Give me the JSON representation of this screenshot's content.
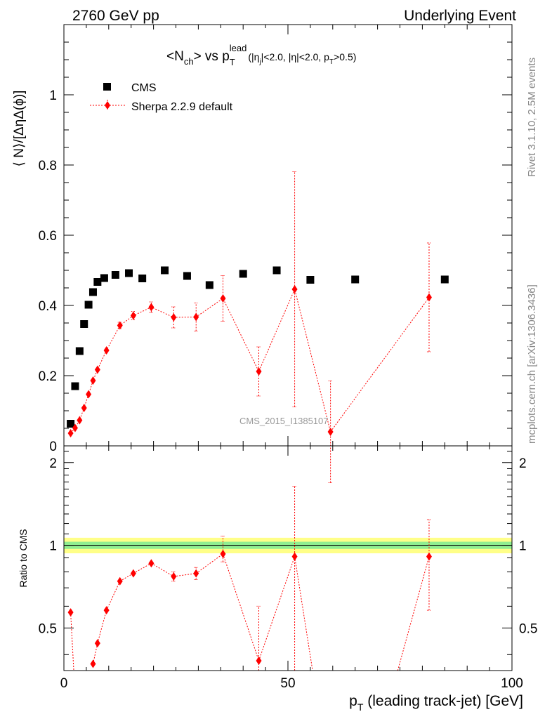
{
  "header": {
    "left": "2760 GeV pp",
    "right": "Underlying Event"
  },
  "side_labels": {
    "top": "Rivet 3.1.10,  2.5M events",
    "bottom": "mcplots.cern.ch [arXiv:1306.3436]"
  },
  "watermark": "CMS_2015_I1385107",
  "title": {
    "n_part": "<N",
    "n_sub": "ch",
    "vs_part": "> vs p",
    "p_sub": "T",
    "p_sup": "lead",
    "cuts_a": "(|η",
    "cuts_a_sub": "j",
    "cuts_b": "|<2.0, |η|<2.0, p",
    "cuts_b_sub": "T",
    "cuts_c": ">0.5)"
  },
  "legend": {
    "cms": "CMS",
    "sherpa": "Sherpa 2.2.9 default"
  },
  "colors": {
    "cms": "#000000",
    "sherpa": "#ff0000",
    "band_inner": "#90ee90",
    "band_outer": "#ffff88"
  },
  "chart_data": [
    {
      "type": "scatter",
      "ylabel": "⟨ N⟩/[ΔηΔ(ϕ)]",
      "xlim": [
        0,
        100
      ],
      "ylim": [
        0,
        1.2
      ],
      "y_ticks": [
        "0",
        "0.2",
        "0.4",
        "0.6",
        "0.8",
        "1"
      ],
      "y_tick_values": [
        0,
        0.2,
        0.4,
        0.6,
        0.8,
        1.0
      ],
      "series": [
        {
          "name": "CMS",
          "marker": "square",
          "x": [
            1.5,
            2.5,
            3.5,
            4.5,
            5.5,
            6.5,
            7.5,
            9.0,
            11.5,
            14.5,
            17.5,
            22.5,
            27.5,
            32.5,
            40.0,
            47.5,
            55.0,
            65.0,
            85.0
          ],
          "y": [
            0.063,
            0.17,
            0.27,
            0.347,
            0.402,
            0.438,
            0.467,
            0.478,
            0.487,
            0.492,
            0.477,
            0.5,
            0.484,
            0.458,
            0.49,
            0.5,
            0.473,
            0.474,
            0.474
          ]
        },
        {
          "name": "Sherpa 2.2.9 default",
          "marker": "diamond",
          "x": [
            1.5,
            2.5,
            3.5,
            4.5,
            5.5,
            6.5,
            7.5,
            9.5,
            12.5,
            15.5,
            19.5,
            24.5,
            29.5,
            35.5,
            43.5,
            51.5,
            59.5,
            81.5
          ],
          "y": [
            0.036,
            0.051,
            0.073,
            0.108,
            0.147,
            0.186,
            0.217,
            0.272,
            0.343,
            0.371,
            0.395,
            0.366,
            0.367,
            0.42,
            0.212,
            0.446,
            0.04,
            0.423
          ],
          "err": [
            0.004,
            0.004,
            0.004,
            0.005,
            0.005,
            0.006,
            0.006,
            0.007,
            0.009,
            0.012,
            0.015,
            0.03,
            0.04,
            0.065,
            0.07,
            0.335,
            0.145,
            0.155
          ]
        }
      ]
    },
    {
      "type": "scatter",
      "xlabel_main": "p",
      "xlabel_sub": "T",
      "xlabel_rest": " (leading track-jet) [GeV]",
      "ylabel": "Ratio to CMS",
      "xlim": [
        0,
        100
      ],
      "ylim": [
        0.35,
        2.3
      ],
      "log_y": true,
      "x_ticks": [
        "0",
        "50",
        "100"
      ],
      "x_tick_values": [
        0,
        50,
        100
      ],
      "y_ticks": [
        "0.5",
        "1",
        "2"
      ],
      "y_tick_values": [
        0.5,
        1,
        2
      ],
      "reference_band": {
        "inner_halfwidth": 0.03,
        "outer_halfwidth": 0.065
      },
      "series": [
        {
          "name": "Sherpa 2.2.9 default",
          "x": [
            1.5,
            6.5,
            7.5,
            9.5,
            12.5,
            15.5,
            19.5,
            24.5,
            29.5,
            35.5,
            43.5,
            51.5,
            81.5
          ],
          "y": [
            0.57,
            0.37,
            0.44,
            0.58,
            0.74,
            0.79,
            0.86,
            0.77,
            0.79,
            0.93,
            0.38,
            0.91,
            0.91
          ],
          "err_lo": [
            0.0,
            0.0,
            0.0,
            0.0,
            0.0,
            0.0,
            0.0,
            0.03,
            0.04,
            0.06,
            0.07,
            0.0,
            0.33
          ],
          "err_hi": [
            0.0,
            0.0,
            0.0,
            0.0,
            0.0,
            0.0,
            0.0,
            0.03,
            0.04,
            0.15,
            0.22,
            0.73,
            0.33
          ]
        }
      ]
    }
  ]
}
